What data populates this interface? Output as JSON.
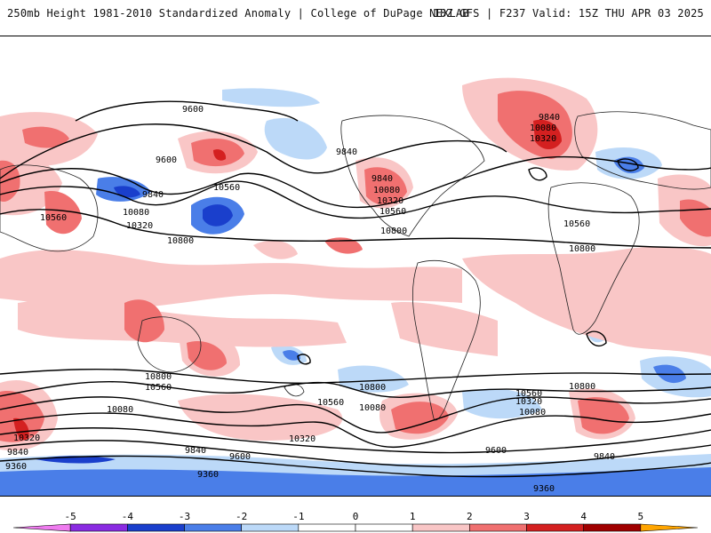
{
  "header": {
    "title": "250mb Height 1981-2010 Standardized Anomaly | College of DuPage NEXLAB",
    "run_info": "18Z GFS | F237 Valid: 15Z THU APR 03 2025"
  },
  "map": {
    "contour_labels": [
      {
        "text": "9600"
      },
      {
        "text": "9600"
      },
      {
        "text": "9840"
      },
      {
        "text": "9840"
      },
      {
        "text": "10080"
      },
      {
        "text": "10320"
      },
      {
        "text": "10560"
      },
      {
        "text": "10560"
      },
      {
        "text": "10800"
      },
      {
        "text": "9840"
      },
      {
        "text": "10080"
      },
      {
        "text": "10320"
      },
      {
        "text": "10560"
      },
      {
        "text": "10800"
      },
      {
        "text": "9840"
      },
      {
        "text": "10080"
      },
      {
        "text": "10320"
      },
      {
        "text": "10560"
      },
      {
        "text": "10800"
      },
      {
        "text": "10800"
      },
      {
        "text": "10560"
      },
      {
        "text": "10560"
      },
      {
        "text": "10080"
      },
      {
        "text": "10800"
      },
      {
        "text": "10080"
      },
      {
        "text": "10320"
      },
      {
        "text": "10320"
      },
      {
        "text": "9840"
      },
      {
        "text": "9600"
      },
      {
        "text": "9840"
      },
      {
        "text": "9360"
      },
      {
        "text": "9360"
      },
      {
        "text": "10800"
      },
      {
        "text": "10560"
      },
      {
        "text": "10320"
      },
      {
        "text": "10080"
      },
      {
        "text": "9600"
      },
      {
        "text": "9840"
      },
      {
        "text": "9360"
      }
    ],
    "anomaly_colors": {
      "neg5": "#e066e0",
      "neg4": "#8a2be2",
      "neg3": "#1a3fcc",
      "neg2": "#4a7ee8",
      "neg1": "#bcd9f8",
      "pos1": "#f9c6c6",
      "pos2": "#f07070",
      "pos3": "#d42020",
      "pos4": "#a00000",
      "pos5": "#ffa500"
    }
  },
  "colorbar": {
    "ticks": [
      "-5",
      "-4",
      "-3",
      "-2",
      "-1",
      "0",
      "1",
      "2",
      "3",
      "4",
      "5"
    ],
    "colors": [
      "#ef7bef",
      "#8a2be2",
      "#1a3fcc",
      "#4a7ee8",
      "#bcd9f8",
      "#ffffff",
      "#ffffff",
      "#f9c6c6",
      "#f07070",
      "#d42020",
      "#a00000",
      "#ffa500"
    ]
  }
}
